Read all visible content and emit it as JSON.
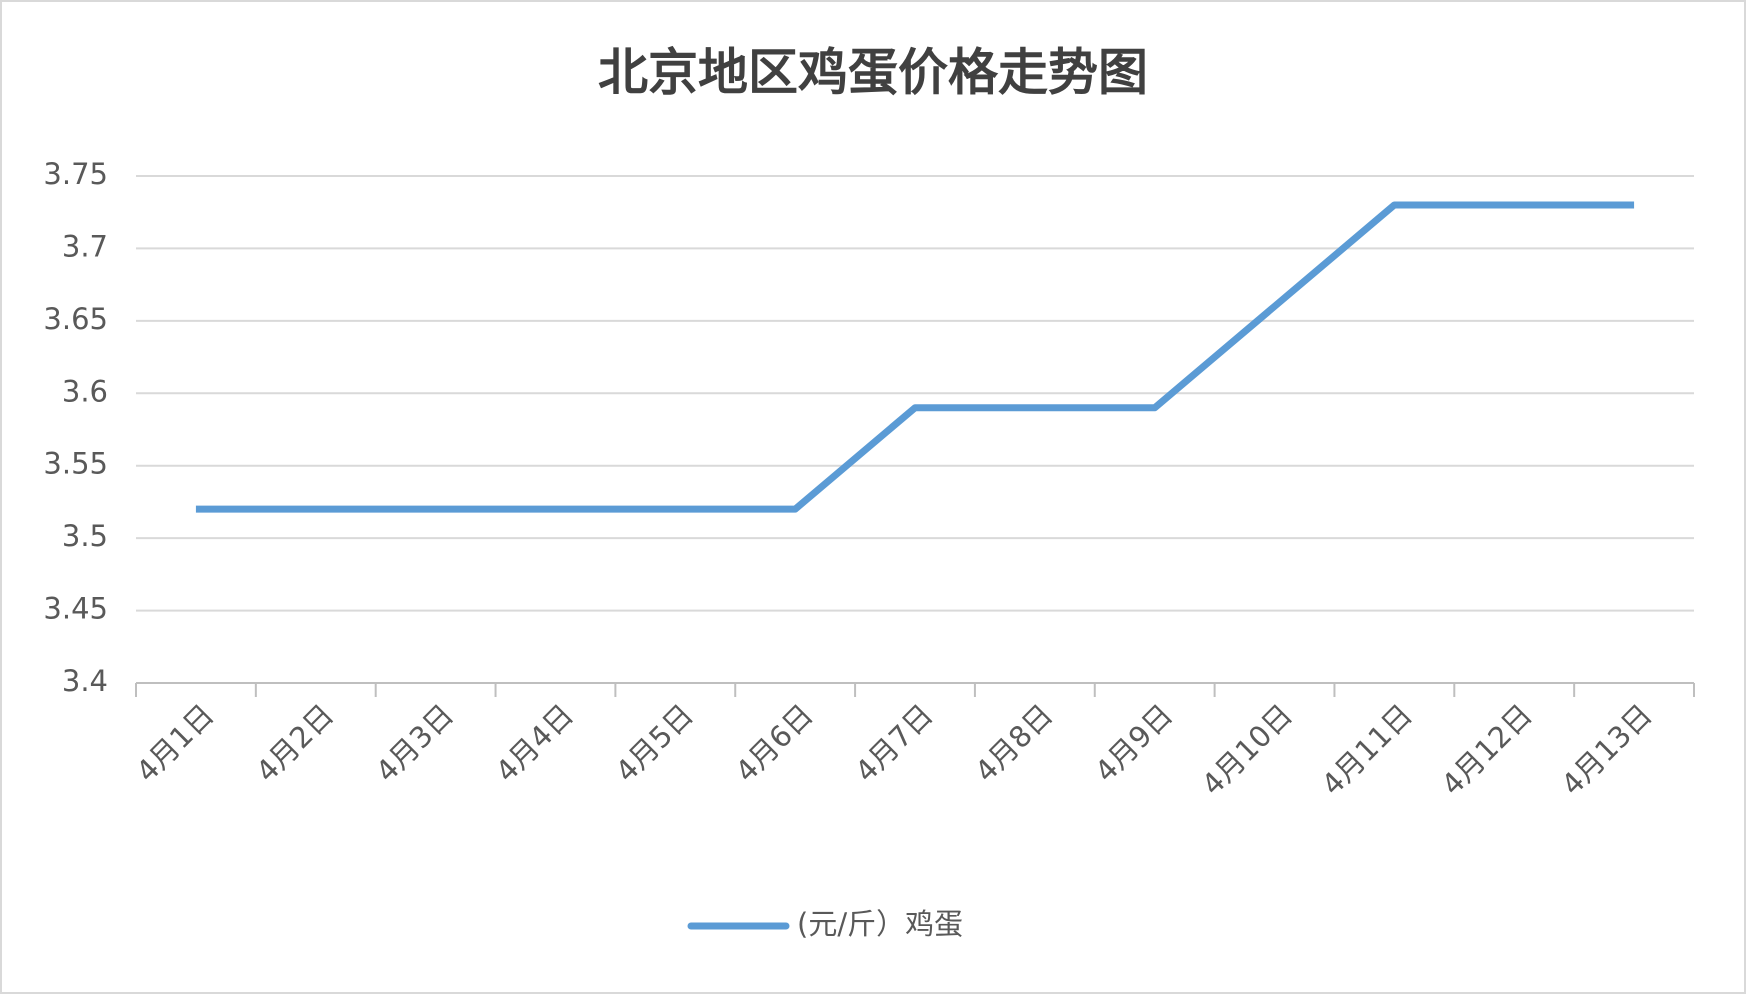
{
  "chart_data": {
    "type": "line",
    "title": "北京地区鸡蛋价格走势图",
    "categories": [
      "4月1日",
      "4月2日",
      "4月3日",
      "4月4日",
      "4月5日",
      "4月6日",
      "4月7日",
      "4月8日",
      "4月9日",
      "4月10日",
      "4月11日",
      "4月12日",
      "4月13日"
    ],
    "series": [
      {
        "name": "(元/斤）鸡蛋",
        "color": "#5b9bd5",
        "values": [
          3.52,
          3.52,
          3.52,
          3.52,
          3.52,
          3.52,
          3.59,
          3.59,
          3.59,
          3.66,
          3.73,
          3.73,
          3.73
        ]
      }
    ],
    "ylim": [
      3.4,
      3.75
    ],
    "yticks": [
      3.4,
      3.45,
      3.5,
      3.55,
      3.6,
      3.65,
      3.7,
      3.75
    ],
    "grid": true,
    "legend": "bottom"
  }
}
